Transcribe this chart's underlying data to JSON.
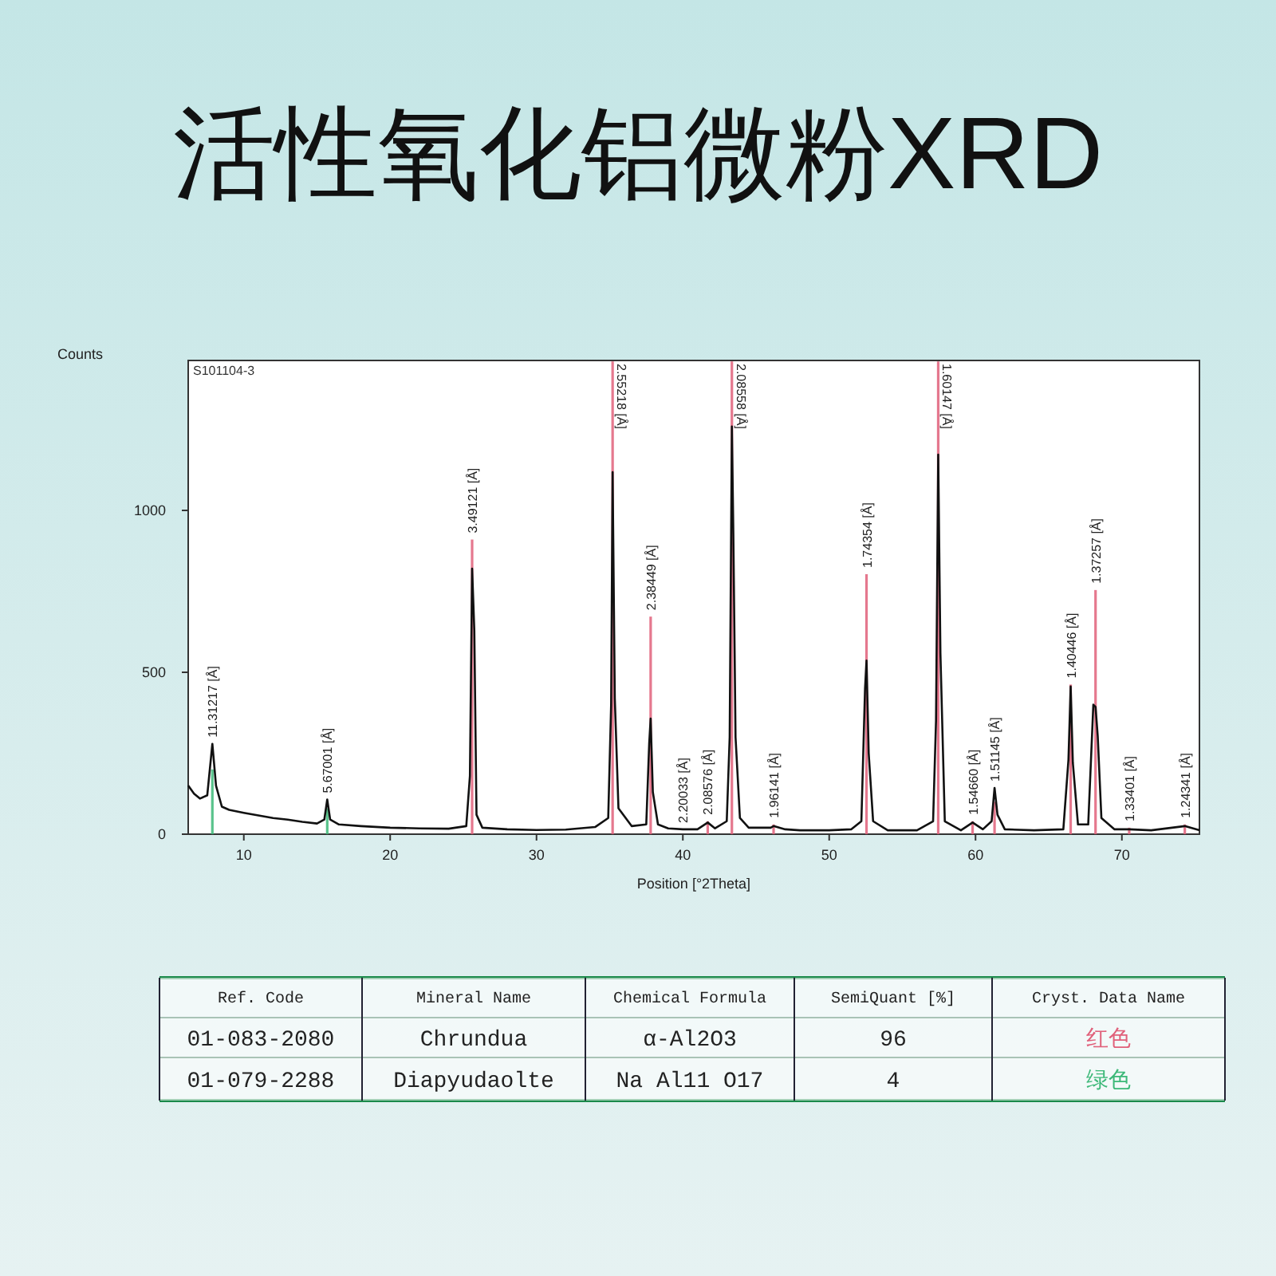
{
  "chart_data": {
    "type": "line",
    "title": "活性氧化铝微粉XRD",
    "subtitle": "S101104-3",
    "xlabel": "Position [°2Theta]",
    "ylabel": "Counts",
    "xlim": [
      6.2,
      75.3
    ],
    "xticks": [
      10,
      20,
      30,
      40,
      50,
      60,
      70
    ],
    "ylim": [
      0,
      1463
    ],
    "yticks": [
      0,
      500,
      1000
    ],
    "grid": false,
    "marker": "none",
    "line_style": "solid",
    "series": [
      {
        "color": "#111111",
        "x": [
          6.2,
          6.6,
          7.0,
          7.5,
          7.85,
          8.1,
          8.5,
          9,
          10,
          11,
          12,
          13,
          14,
          15,
          15.5,
          15.7,
          15.9,
          16.5,
          18,
          20,
          22,
          24,
          25.2,
          25.45,
          25.6,
          25.75,
          25.9,
          26.3,
          28,
          30,
          32,
          34,
          34.9,
          35.1,
          35.2,
          35.35,
          35.6,
          36.5,
          37.5,
          37.7,
          37.8,
          37.95,
          38.3,
          39,
          40,
          41,
          41.7,
          42.2,
          43.0,
          43.2,
          43.35,
          43.45,
          43.6,
          43.9,
          44.5,
          46,
          46.2,
          47,
          48,
          50,
          51.5,
          52.2,
          52.45,
          52.55,
          52.7,
          53.0,
          54,
          56,
          57.1,
          57.3,
          57.45,
          57.6,
          57.9,
          59,
          59.8,
          60.5,
          61.1,
          61.3,
          61.5,
          62,
          64,
          66,
          66.35,
          66.5,
          66.65,
          67,
          67.7,
          68.05,
          68.2,
          68.35,
          68.6,
          69.5,
          70.5,
          72,
          74.3,
          75.3
        ],
        "values": [
          150,
          125,
          110,
          120,
          279,
          150,
          85,
          75,
          66,
          58,
          50,
          45,
          38,
          33,
          45,
          107,
          45,
          30,
          25,
          20,
          18,
          17,
          25,
          180,
          820,
          630,
          60,
          20,
          15,
          13,
          14,
          22,
          50,
          400,
          1118,
          420,
          80,
          25,
          30,
          280,
          357,
          130,
          30,
          18,
          15,
          15,
          36,
          18,
          40,
          300,
          1259,
          930,
          300,
          50,
          20,
          20,
          25,
          15,
          12,
          12,
          15,
          40,
          450,
          536,
          250,
          40,
          12,
          12,
          40,
          350,
          1172,
          560,
          40,
          12,
          36,
          15,
          40,
          143,
          60,
          15,
          12,
          15,
          230,
          456,
          220,
          30,
          30,
          400,
          393,
          303,
          50,
          15,
          15,
          12,
          25,
          12
        ]
      },
      {
        "type": "bar",
        "color": "#e0607a",
        "x": [
          25.6,
          35.2,
          37.8,
          41.7,
          43.35,
          46.2,
          52.55,
          57.45,
          59.8,
          61.3,
          66.5,
          68.2,
          70.5,
          74.3
        ],
        "values": [
          910,
          1460,
          672,
          40,
          1460,
          30,
          803,
          1460,
          40,
          100,
          462,
          754,
          20,
          30
        ]
      },
      {
        "type": "bar",
        "color": "#3cb878",
        "x": [
          7.85,
          15.7
        ],
        "values": [
          200,
          80
        ]
      }
    ],
    "annotations": [
      {
        "text": "11.31217 [Å]",
        "x": 7.85,
        "y": 279
      },
      {
        "text": "5.67001 [Å]",
        "x": 15.7,
        "y": 107
      },
      {
        "text": "3.49121 [Å]",
        "x": 25.6,
        "y": 910
      },
      {
        "text": "2.55218 [Å]",
        "x": 35.2,
        "y": 1460
      },
      {
        "text": "2.38449 [Å]",
        "x": 37.8,
        "y": 672
      },
      {
        "text": "2.20033 [Å]",
        "x": 40.0,
        "y": 15
      },
      {
        "text": "2.08576 [Å]",
        "x": 41.7,
        "y": 40
      },
      {
        "text": "2.08558 [Å]",
        "x": 43.35,
        "y": 1460
      },
      {
        "text": "1.96141 [Å]",
        "x": 46.2,
        "y": 30
      },
      {
        "text": "1.74354 [Å]",
        "x": 52.55,
        "y": 803
      },
      {
        "text": "1.60147 [Å]",
        "x": 57.45,
        "y": 1460
      },
      {
        "text": "1.54660 [Å]",
        "x": 59.8,
        "y": 40
      },
      {
        "text": "1.51145 [Å]",
        "x": 61.3,
        "y": 143
      },
      {
        "text": "1.40446 [Å]",
        "x": 66.5,
        "y": 462
      },
      {
        "text": "1.37257 [Å]",
        "x": 68.2,
        "y": 754
      },
      {
        "text": "1.33401 [Å]",
        "x": 70.5,
        "y": 20
      },
      {
        "text": "1.24341 [Å]",
        "x": 74.3,
        "y": 30
      },
      "Ref. Code",
      "Mineral Name",
      "Chemical Formula",
      "SemiQuant [%]",
      "Cryst. Data Name",
      "01-083-2080",
      "Chrundua",
      "α-Al2O3",
      "96",
      "红色",
      "01-079-2288",
      "Diapyudaolte",
      "Na Al11 O17",
      "4",
      "绿色"
    ]
  }
}
